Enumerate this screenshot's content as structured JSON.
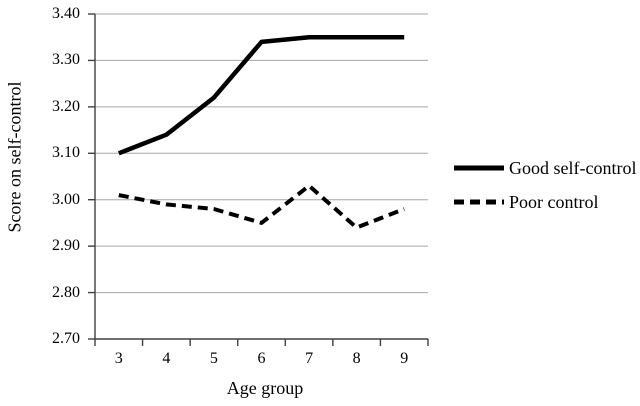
{
  "chart_data": {
    "type": "line",
    "title": "",
    "xlabel": "Age group",
    "ylabel": "Score on self-control",
    "categories": [
      "3",
      "4",
      "5",
      "6",
      "7",
      "8",
      "9"
    ],
    "series": [
      {
        "name": "Good self-control",
        "style": "solid",
        "values": [
          3.1,
          3.14,
          3.22,
          3.34,
          3.35,
          3.35,
          3.35
        ]
      },
      {
        "name": "Poor control",
        "style": "dashed",
        "values": [
          3.01,
          2.99,
          2.98,
          2.95,
          3.03,
          2.94,
          2.98
        ]
      }
    ],
    "ylim": [
      2.7,
      3.4
    ],
    "ytick_step": 0.1,
    "yticks": [
      "3.40",
      "3.30",
      "3.20",
      "3.10",
      "3.00",
      "2.90",
      "2.80",
      "2.70"
    ],
    "grid": "horizontal",
    "legend_position": "right"
  },
  "colors": {
    "series": "#000000",
    "grid": "#a6a6a6",
    "axis": "#404040",
    "text": "#000000",
    "background": "#ffffff"
  }
}
